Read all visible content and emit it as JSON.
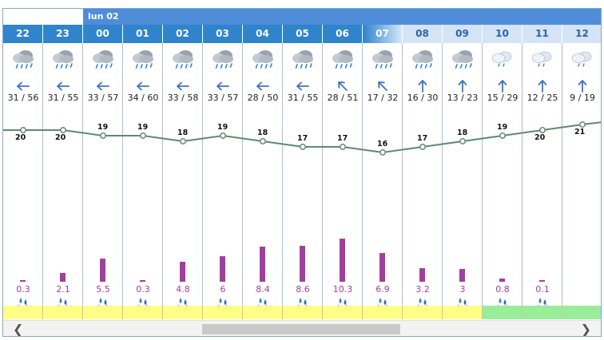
{
  "day_label": "lun 02",
  "colors": {
    "past_header": "#2f84cc",
    "future_header": "#d4e4f6",
    "rain": "#a33ea0",
    "temp_line": "#5c8a6f",
    "strip_yellow": "#ffff88",
    "strip_green": "#99ee99"
  },
  "hours": [
    {
      "label": "22",
      "state": "past",
      "icon": "rain-cloud-icon",
      "wind_dir": "W",
      "wind": "31 / 56",
      "temp": 20,
      "temp_pos": "below",
      "rain": "0.3",
      "rain_mm": 0.3,
      "strip": "yellow"
    },
    {
      "label": "23",
      "state": "past",
      "icon": "rain-cloud-icon",
      "wind_dir": "W",
      "wind": "31 / 55",
      "temp": 20,
      "temp_pos": "below",
      "rain": "2.1",
      "rain_mm": 2.1,
      "strip": "yellow"
    },
    {
      "label": "00",
      "state": "past",
      "icon": "rain-cloud-icon",
      "wind_dir": "W",
      "wind": "33 / 57",
      "temp": 19,
      "temp_pos": "above",
      "rain": "5.5",
      "rain_mm": 5.5,
      "strip": "yellow"
    },
    {
      "label": "01",
      "state": "past",
      "icon": "rain-cloud-icon",
      "wind_dir": "W",
      "wind": "34 / 60",
      "temp": 19,
      "temp_pos": "above",
      "rain": "0.3",
      "rain_mm": 0.3,
      "strip": "yellow"
    },
    {
      "label": "02",
      "state": "past",
      "icon": "rain-cloud-icon",
      "wind_dir": "W",
      "wind": "33 / 58",
      "temp": 18,
      "temp_pos": "above",
      "rain": "4.8",
      "rain_mm": 4.8,
      "strip": "yellow"
    },
    {
      "label": "03",
      "state": "past",
      "icon": "rain-cloud-icon",
      "wind_dir": "W",
      "wind": "33 / 57",
      "temp": 19,
      "temp_pos": "above",
      "rain": "6",
      "rain_mm": 6,
      "strip": "yellow"
    },
    {
      "label": "04",
      "state": "past",
      "icon": "rain-cloud-icon",
      "wind_dir": "W",
      "wind": "28 / 50",
      "temp": 18,
      "temp_pos": "above",
      "rain": "8.4",
      "rain_mm": 8.4,
      "strip": "yellow"
    },
    {
      "label": "05",
      "state": "past",
      "icon": "rain-cloud-icon",
      "wind_dir": "W",
      "wind": "31 / 55",
      "temp": 17,
      "temp_pos": "above",
      "rain": "8.6",
      "rain_mm": 8.6,
      "strip": "yellow"
    },
    {
      "label": "06",
      "state": "past",
      "icon": "rain-cloud-icon",
      "wind_dir": "NW",
      "wind": "28 / 51",
      "temp": 17,
      "temp_pos": "above",
      "rain": "10.3",
      "rain_mm": 10.3,
      "strip": "yellow"
    },
    {
      "label": "07",
      "state": "now",
      "icon": "rain-cloud-icon",
      "wind_dir": "NW",
      "wind": "17 / 32",
      "temp": 16,
      "temp_pos": "above",
      "rain": "6.9",
      "rain_mm": 6.9,
      "strip": "yellow"
    },
    {
      "label": "08",
      "state": "future",
      "icon": "rain-cloud-icon",
      "wind_dir": "N",
      "wind": "16 / 30",
      "temp": 17,
      "temp_pos": "above",
      "rain": "3.2",
      "rain_mm": 3.2,
      "strip": "yellow"
    },
    {
      "label": "09",
      "state": "future",
      "icon": "rain-cloud-icon",
      "wind_dir": "N",
      "wind": "13 / 23",
      "temp": 18,
      "temp_pos": "above",
      "rain": "3",
      "rain_mm": 3,
      "strip": "yellow"
    },
    {
      "label": "10",
      "state": "future",
      "icon": "cloudy-drizzle-icon",
      "wind_dir": "N",
      "wind": "15 / 29",
      "temp": 19,
      "temp_pos": "above",
      "rain": "0.8",
      "rain_mm": 0.8,
      "strip": "green"
    },
    {
      "label": "11",
      "state": "future",
      "icon": "cloudy-drizzle-icon",
      "wind_dir": "N",
      "wind": "12 / 25",
      "temp": 20,
      "temp_pos": "below",
      "rain": "0.1",
      "rain_mm": 0.1,
      "strip": "green"
    },
    {
      "label": "12",
      "state": "future",
      "icon": "cloudy-drizzle-icon",
      "wind_dir": "N",
      "wind": "9 / 19",
      "temp": 21,
      "temp_pos": "below",
      "rain": "",
      "rain_mm": 0,
      "strip": "green"
    }
  ],
  "scroll": {
    "left_icon": "chevron-left-icon",
    "right_icon": "chevron-right-icon"
  }
}
